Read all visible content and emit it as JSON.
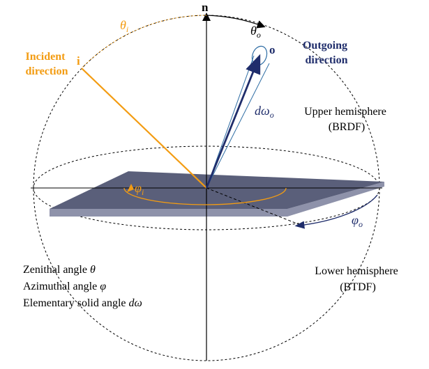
{
  "labels": {
    "normal": "n",
    "theta_i": "θ",
    "theta_i_sub": "i",
    "theta_o": "θ",
    "theta_o_sub": "o",
    "incident_vector": "i",
    "outgoing_vector": "o",
    "incident_line1": "Incident",
    "incident_line2": "direction",
    "outgoing_line1": "Outgoing",
    "outgoing_line2": "direction",
    "d_omega": "dω",
    "d_omega_sub": "o",
    "upper_line1": "Upper hemisphere",
    "upper_line2": "(BRDF)",
    "lower_line1": "Lower hemisphere",
    "lower_line2": "(BTDF)",
    "phi_i": "φ",
    "phi_i_sub": "i",
    "phi_o": "φ",
    "phi_o_sub": "o"
  },
  "legend": {
    "zenithal_text": "Zenithal angle ",
    "zenithal_symbol": "θ",
    "azimuthal_text": "Azimuthal angle ",
    "azimuthal_symbol": "φ",
    "solid_text": "Elementary solid angle ",
    "solid_symbol": "dω"
  },
  "colors": {
    "incident": "#f39c12",
    "outgoing": "#1f2d6b",
    "cone": "#2e6da4",
    "surface_top": "#5a5f7a",
    "surface_edge": "#8e92aa",
    "axis": "#000000"
  }
}
